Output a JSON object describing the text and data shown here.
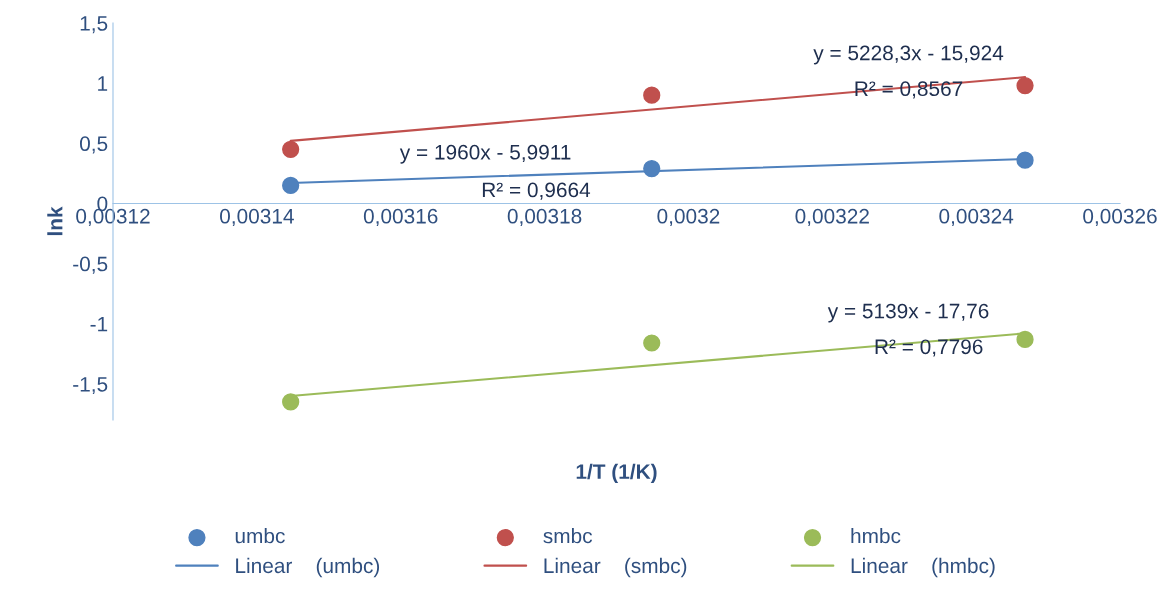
{
  "chart_data": {
    "type": "scatter",
    "xlabel": "1/T (1/K)",
    "ylabel": "lnk",
    "series": [
      {
        "name": "umbc",
        "color": "#4f81bd",
        "x": [
          0.0031447,
          0.0031949,
          0.0032468
        ],
        "values": [
          0.15,
          0.29,
          0.36
        ]
      },
      {
        "name": "smbc",
        "color": "#c0504d",
        "x": [
          0.0031447,
          0.0031949,
          0.0032468
        ],
        "values": [
          0.45,
          0.9,
          0.98
        ]
      },
      {
        "name": "hmbc",
        "color": "#9bbb59",
        "x": [
          0.0031447,
          0.0031949,
          0.0032468
        ],
        "values": [
          -1.65,
          -1.16,
          -1.13
        ]
      },
      {
        "name": "Linear    (umbc)",
        "type": "line",
        "marker": "none",
        "color": "#4f81bd",
        "x": [
          0.0031447,
          0.0032468
        ],
        "values": [
          0.17,
          0.37
        ]
      },
      {
        "name": "Linear    (smbc)",
        "type": "line",
        "marker": "none",
        "color": "#c0504d",
        "x": [
          0.0031447,
          0.0032468
        ],
        "values": [
          0.52,
          1.05
        ]
      },
      {
        "name": "Linear    (hmbc)",
        "type": "line",
        "marker": "none",
        "color": "#9bbb59",
        "x": [
          0.0031447,
          0.0032468
        ],
        "values": [
          -1.6,
          -1.08
        ]
      }
    ],
    "xlim": [
      0.00312,
      0.00326
    ],
    "xticks": [
      {
        "value": 0.00312,
        "label": "0,00312"
      },
      {
        "value": 0.00314,
        "label": "0,00314"
      },
      {
        "value": 0.00316,
        "label": "0,00316"
      },
      {
        "value": 0.00318,
        "label": "0,00318"
      },
      {
        "value": 0.0032,
        "label": "0,0032"
      },
      {
        "value": 0.00322,
        "label": "0,00322"
      },
      {
        "value": 0.00324,
        "label": "0,00324"
      },
      {
        "value": 0.00326,
        "label": "0,00326"
      }
    ],
    "ylim": [
      -1.8,
      1.5
    ],
    "yticks": [
      {
        "value": -1.5,
        "label": "-1,5"
      },
      {
        "value": -1,
        "label": "-1"
      },
      {
        "value": -0.5,
        "label": "-0,5"
      },
      0,
      {
        "value": 0.5,
        "label": "0,5"
      },
      1,
      {
        "value": 1.5,
        "label": "1,5"
      }
    ],
    "annotations": [
      "y = 1960x - 5,9911",
      "R² = 0,9664",
      "y = 5228,3x - 15,924",
      "R² = 0,8567",
      "y = 5139x - 17,76",
      "R² = 0,7796"
    ],
    "grid": false,
    "legend": "bottom",
    "marker": "circle",
    "line_style": "solid"
  }
}
